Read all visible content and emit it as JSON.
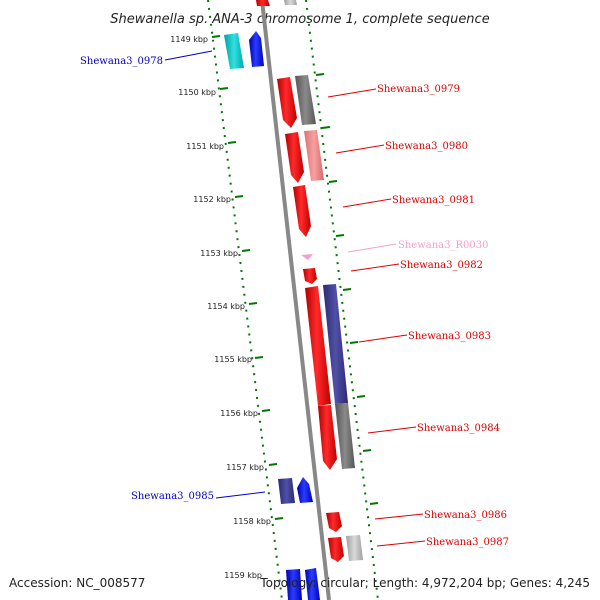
{
  "title": "Shewanella sp. ANA-3 chromosome 1, complete sequence",
  "footer": {
    "accession": "Accession: NC_008577",
    "summary": "Topology: circular; Length: 4,972,204 bp; Genes: 4,245"
  },
  "colors": {
    "forward": "#ff0000",
    "reverse": "#0000ff",
    "rna": "#f4a8c8",
    "backbone": "#888888",
    "dotted_guide": "#007700"
  },
  "ticks": [
    "1149 kbp",
    "1150 kbp",
    "1151 kbp",
    "1152 kbp",
    "1153 kbp",
    "1154 kbp",
    "1155 kbp",
    "1156 kbp",
    "1157 kbp",
    "1158 kbp",
    "1159 kbp"
  ],
  "genes": [
    {
      "label": "Shewana3_0978",
      "strand": "reverse",
      "color": "#0000cc"
    },
    {
      "label": "Shewana3_0979",
      "strand": "forward",
      "color": "#dd0000"
    },
    {
      "label": "Shewana3_0980",
      "strand": "forward",
      "color": "#dd0000"
    },
    {
      "label": "Shewana3_0981",
      "strand": "forward",
      "color": "#dd0000"
    },
    {
      "label": "Shewana3_R0030",
      "strand": "forward",
      "color": "#f4a0c8"
    },
    {
      "label": "Shewana3_0982",
      "strand": "forward",
      "color": "#dd0000"
    },
    {
      "label": "Shewana3_0983",
      "strand": "forward",
      "color": "#dd0000"
    },
    {
      "label": "Shewana3_0984",
      "strand": "forward",
      "color": "#dd0000"
    },
    {
      "label": "Shewana3_0985",
      "strand": "reverse",
      "color": "#0000cc"
    },
    {
      "label": "Shewana3_0986",
      "strand": "forward",
      "color": "#dd0000"
    },
    {
      "label": "Shewana3_0987",
      "strand": "forward",
      "color": "#dd0000"
    }
  ]
}
